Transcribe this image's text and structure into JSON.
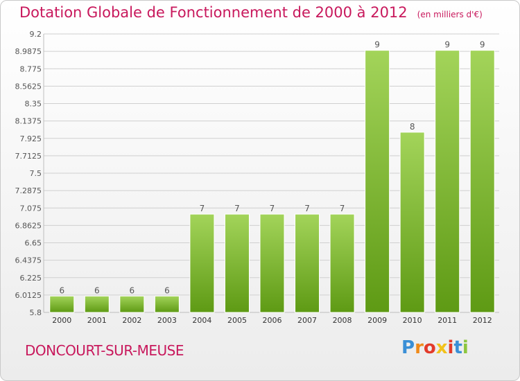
{
  "title": "Dotation Globale de Fonctionnement de 2000 à 2012",
  "unit": "(en milliers d'€)",
  "commune": "DONCOURT-SUR-MEUSE",
  "logo": {
    "letters": [
      "P",
      "r",
      "o",
      "x",
      "i",
      "t",
      "i"
    ],
    "colors": [
      "#3a8fd6",
      "#f08a1a",
      "#e23a2a",
      "#f2c21a",
      "#e23a2a",
      "#3a8fd6",
      "#8cc63f"
    ]
  },
  "colors": {
    "accent": "#c8185c",
    "bar_top": "#a3d45a",
    "bar_bottom": "#5e9a14"
  },
  "chart_data": {
    "type": "bar",
    "categories": [
      "2000",
      "2001",
      "2002",
      "2003",
      "2004",
      "2005",
      "2006",
      "2007",
      "2008",
      "2009",
      "2010",
      "2011",
      "2012"
    ],
    "values": [
      6,
      6,
      6,
      6,
      7,
      7,
      7,
      7,
      7,
      9,
      8,
      9,
      9
    ],
    "data_labels": [
      "6",
      "6",
      "6",
      "6",
      "7",
      "7",
      "7",
      "7",
      "7",
      "9",
      "8",
      "9",
      "9"
    ],
    "ylim": [
      5.8,
      9.2
    ],
    "yticks": [
      "9.2",
      "8.9875",
      "8.775",
      "8.5625",
      "8.35",
      "8.1375",
      "7.925",
      "7.7125",
      "7.5",
      "7.2875",
      "7.075",
      "6.8625",
      "6.65",
      "6.4375",
      "6.225",
      "6.0125",
      "5.8"
    ],
    "grid": true
  }
}
